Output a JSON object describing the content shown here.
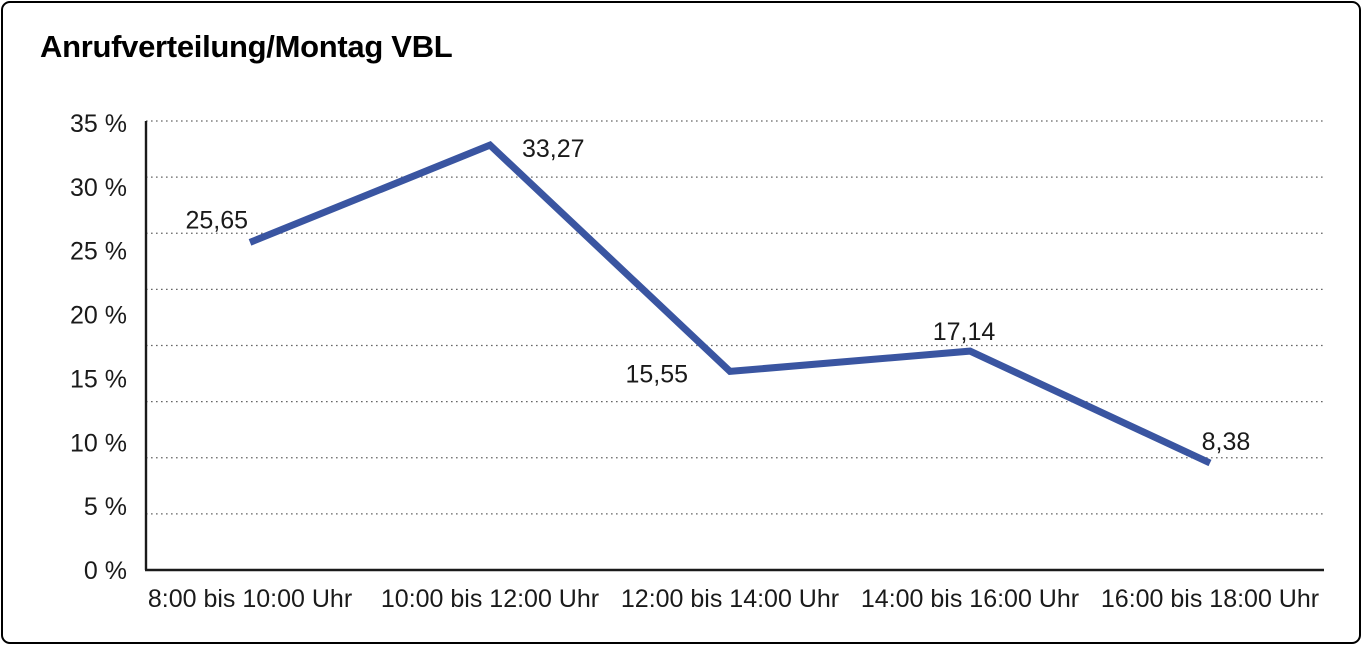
{
  "chart_data": {
    "type": "line",
    "title": "Anrufverteilung/Montag VBL",
    "categories": [
      "8:00 bis 10:00 Uhr",
      "10:00 bis 12:00 Uhr",
      "12:00 bis 14:00 Uhr",
      "14:00 bis 16:00 Uhr",
      "16:00 bis 18:00 Uhr"
    ],
    "values": [
      25.65,
      33.27,
      15.55,
      17.14,
      8.38
    ],
    "point_labels": [
      "25,65",
      "33,27",
      "15,55",
      "17,14",
      "8,38"
    ],
    "y_tick_values": [
      35,
      30,
      25,
      20,
      15,
      10,
      5,
      0
    ],
    "y_tick_labels": [
      "35 %",
      "30 %",
      "25 %",
      "20 %",
      "15 %",
      "10 %",
      "5 %",
      "0 %"
    ],
    "xlabel": "",
    "ylabel": "",
    "ylim": [
      0,
      35
    ],
    "grid": "horizontal-dotted",
    "legend": "none",
    "colors": {
      "line": "#3A55A1",
      "axis": "#1a1a1a",
      "grid_dots": "#666666",
      "text": "#1a1a1a",
      "background": "#ffffff",
      "frame_border": "#000000"
    }
  }
}
